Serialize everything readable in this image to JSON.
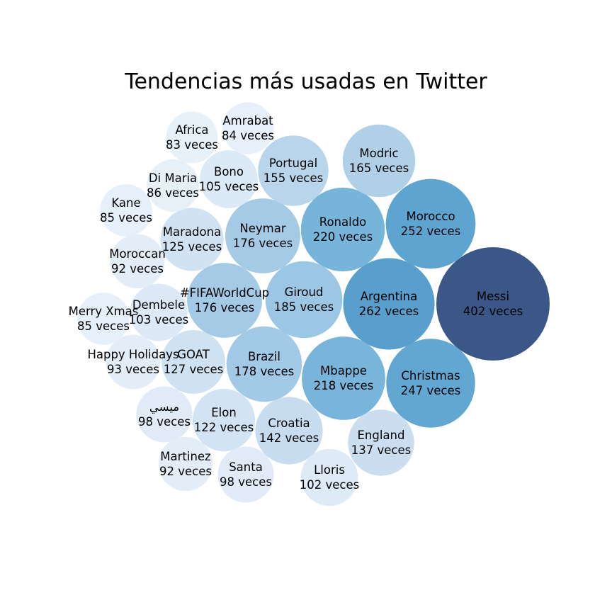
{
  "chart_data": {
    "type": "bubble",
    "title": "Tendencias más usadas en Twitter",
    "unit": "veces",
    "items": [
      {
        "name": "Messi",
        "value": 402
      },
      {
        "name": "Argentina",
        "value": 262
      },
      {
        "name": "Morocco",
        "value": 252
      },
      {
        "name": "Christmas",
        "value": 247
      },
      {
        "name": "Ronaldo",
        "value": 220
      },
      {
        "name": "Mbappe",
        "value": 218
      },
      {
        "name": "Giroud",
        "value": 185
      },
      {
        "name": "Brazil",
        "value": 178
      },
      {
        "name": "Neymar",
        "value": 176
      },
      {
        "name": "#FIFAWorldCup",
        "value": 176
      },
      {
        "name": "Modric",
        "value": 165
      },
      {
        "name": "Portugal",
        "value": 155
      },
      {
        "name": "Croatia",
        "value": 142
      },
      {
        "name": "England",
        "value": 137
      },
      {
        "name": "GOAT",
        "value": 127
      },
      {
        "name": "Maradona",
        "value": 125
      },
      {
        "name": "Elon",
        "value": 122
      },
      {
        "name": "Bono",
        "value": 105
      },
      {
        "name": "Dembele",
        "value": 103
      },
      {
        "name": "Lloris",
        "value": 102
      },
      {
        "name": "ميسي",
        "value": 98
      },
      {
        "name": "Santa",
        "value": 98
      },
      {
        "name": "Happy Holidays",
        "value": 93
      },
      {
        "name": "Moroccan",
        "value": 92
      },
      {
        "name": "Martinez",
        "value": 92
      },
      {
        "name": "Di Maria",
        "value": 86
      },
      {
        "name": "Kane",
        "value": 85
      },
      {
        "name": "Merry Xmas",
        "value": 85
      },
      {
        "name": "Amrabat",
        "value": 84
      },
      {
        "name": "Africa",
        "value": 83
      }
    ]
  }
}
